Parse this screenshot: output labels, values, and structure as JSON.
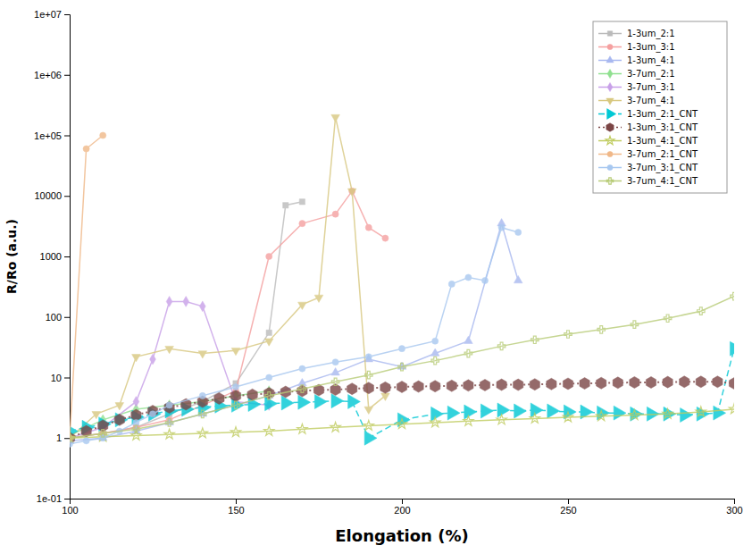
{
  "chart_data": {
    "type": "line",
    "x_label": "Elongation (%)",
    "y_label": "R/Ro (a.u.)",
    "log": "y",
    "grid": false,
    "legend": "upper right",
    "xlim": [
      100,
      300
    ],
    "xticks": [
      100,
      150,
      200,
      250,
      300
    ],
    "ylim": [
      0.1,
      10000000
    ],
    "yticks": [
      {
        "value": 0.1,
        "label": "1e-01"
      },
      1,
      10,
      100,
      1000,
      10000,
      {
        "value": 100000,
        "label": "1e+05"
      },
      {
        "value": 1000000,
        "label": "1e+06"
      },
      {
        "value": 10000000,
        "label": "1e+07"
      }
    ],
    "series": [
      {
        "name": "1-3um_2:1",
        "color": "#bbbbbb",
        "marker": "square",
        "line_style": "solid",
        "x": [
          100,
          110,
          120,
          130,
          140,
          150,
          160,
          165,
          170
        ],
        "values": [
          1.0,
          1.2,
          1.5,
          2.5,
          4.0,
          8.0,
          55,
          7000,
          8000
        ]
      },
      {
        "name": "1-3um_3:1",
        "color": "#f5a0a0",
        "marker": "circle",
        "line_style": "solid",
        "x": [
          100,
          110,
          120,
          130,
          140,
          150,
          160,
          170,
          180,
          185,
          190,
          195
        ],
        "values": [
          1.0,
          1.2,
          1.5,
          2.0,
          3.5,
          6.0,
          1000,
          3500,
          5000,
          12000,
          3000,
          2000
        ]
      },
      {
        "name": "1-3um_4:1",
        "color": "#a8b8f0",
        "marker": "triangle-up",
        "line_style": "solid",
        "x": [
          100,
          110,
          120,
          130,
          140,
          150,
          160,
          170,
          180,
          190,
          200,
          210,
          220,
          230,
          235
        ],
        "values": [
          0.9,
          1.0,
          1.3,
          1.8,
          2.5,
          3.5,
          5.0,
          8.0,
          12,
          20,
          15,
          25,
          40,
          3500,
          400
        ]
      },
      {
        "name": "3-7um_2:1",
        "color": "#90e090",
        "marker": "diamond",
        "line_style": "solid",
        "x": [
          100,
          110,
          120,
          130,
          140,
          150,
          160
        ],
        "values": [
          1.1,
          2.0,
          3.0,
          3.5,
          4.0,
          5.0,
          6.0
        ]
      },
      {
        "name": "3-7um_3:1",
        "color": "#c8a0e8",
        "marker": "diamond",
        "line_style": "solid",
        "x": [
          100,
          110,
          120,
          125,
          130,
          135,
          140,
          150,
          160
        ],
        "values": [
          1.0,
          1.5,
          4.0,
          20,
          180,
          180,
          150,
          4.0,
          3.5
        ]
      },
      {
        "name": "3-7um_4:1",
        "color": "#d8c880",
        "marker": "triangle-down",
        "line_style": "solid",
        "x": [
          100,
          108,
          115,
          120,
          130,
          140,
          150,
          160,
          170,
          175,
          180,
          185,
          190,
          195
        ],
        "values": [
          1.0,
          2.5,
          3.5,
          22,
          30,
          25,
          28,
          40,
          160,
          210,
          200000,
          12000,
          3.0,
          5.0
        ]
      },
      {
        "name": "1-3um_2:1_CNT",
        "color": "#00c8d4",
        "marker": "triangle-right",
        "line_style": "dashed",
        "x": [
          100,
          105,
          110,
          115,
          120,
          125,
          130,
          135,
          140,
          145,
          150,
          155,
          160,
          165,
          170,
          175,
          180,
          185,
          190,
          200,
          210,
          215,
          220,
          225,
          230,
          235,
          240,
          245,
          250,
          255,
          260,
          265,
          270,
          275,
          280,
          285,
          290,
          295,
          300
        ],
        "values": [
          1.3,
          1.5,
          1.7,
          2.0,
          2.2,
          2.5,
          2.8,
          3.0,
          3.2,
          3.4,
          3.5,
          3.6,
          3.7,
          3.8,
          3.9,
          4.0,
          4.1,
          4.0,
          1.0,
          2.0,
          2.5,
          2.6,
          2.7,
          2.8,
          2.9,
          2.8,
          2.9,
          2.8,
          2.7,
          2.7,
          2.6,
          2.6,
          2.5,
          2.5,
          2.5,
          2.4,
          2.5,
          2.6,
          30
        ]
      },
      {
        "name": "1-3um_3:1_CNT",
        "color": "#7b4545",
        "marker": "hexagon",
        "line_style": "dotted",
        "x": [
          100,
          105,
          110,
          115,
          120,
          125,
          130,
          135,
          140,
          145,
          150,
          155,
          160,
          165,
          170,
          175,
          180,
          185,
          190,
          195,
          200,
          205,
          210,
          215,
          220,
          225,
          230,
          235,
          240,
          245,
          250,
          255,
          260,
          265,
          270,
          275,
          280,
          285,
          290,
          295,
          300
        ],
        "values": [
          1.0,
          1.3,
          1.6,
          2.0,
          2.4,
          2.8,
          3.2,
          3.6,
          4.0,
          4.5,
          5.0,
          5.2,
          5.5,
          5.8,
          6.0,
          6.2,
          6.3,
          6.5,
          6.7,
          6.8,
          7.0,
          7.1,
          7.2,
          7.3,
          7.4,
          7.5,
          7.6,
          7.6,
          7.7,
          7.8,
          7.9,
          8.0,
          8.1,
          8.2,
          8.3,
          8.3,
          8.4,
          8.5,
          8.5,
          8.5,
          8.0
        ]
      },
      {
        "name": "1-3um_4:1_CNT",
        "color": "#c0cc60",
        "marker": "star",
        "line_style": "solid",
        "x": [
          100,
          110,
          120,
          130,
          140,
          150,
          160,
          170,
          180,
          190,
          200,
          210,
          220,
          230,
          240,
          250,
          260,
          270,
          280,
          290,
          300
        ],
        "values": [
          1.0,
          1.05,
          1.1,
          1.15,
          1.2,
          1.25,
          1.3,
          1.4,
          1.5,
          1.6,
          1.7,
          1.8,
          1.9,
          2.0,
          2.1,
          2.2,
          2.3,
          2.4,
          2.5,
          2.7,
          3.0
        ]
      },
      {
        "name": "3-7um_2:1_CNT",
        "color": "#f0b888",
        "marker": "circle",
        "line_style": "solid",
        "x": [
          100,
          105,
          110
        ],
        "values": [
          1.0,
          60000,
          100000
        ]
      },
      {
        "name": "3-7um_3:1_CNT",
        "color": "#a8c8f0",
        "marker": "circle",
        "line_style": "solid",
        "x": [
          100,
          105,
          110,
          115,
          120,
          125,
          130,
          140,
          150,
          160,
          170,
          180,
          190,
          200,
          210,
          215,
          220,
          225,
          230,
          235
        ],
        "values": [
          0.8,
          0.9,
          1.0,
          1.3,
          1.8,
          2.5,
          3.5,
          5.0,
          7.0,
          10,
          14,
          18,
          22,
          30,
          40,
          350,
          450,
          400,
          3000,
          2500
        ]
      },
      {
        "name": "3-7um_4:1_CNT",
        "color": "#b8cc78",
        "marker": "plus",
        "line_style": "solid",
        "x": [
          100,
          110,
          120,
          130,
          140,
          150,
          160,
          170,
          180,
          190,
          200,
          210,
          220,
          230,
          240,
          250,
          260,
          270,
          280,
          290,
          300
        ],
        "values": [
          1.0,
          1.2,
          1.4,
          1.8,
          2.5,
          3.5,
          5.0,
          6.5,
          8.5,
          11,
          15,
          19,
          25,
          33,
          42,
          52,
          62,
          75,
          95,
          125,
          220
        ]
      }
    ]
  }
}
